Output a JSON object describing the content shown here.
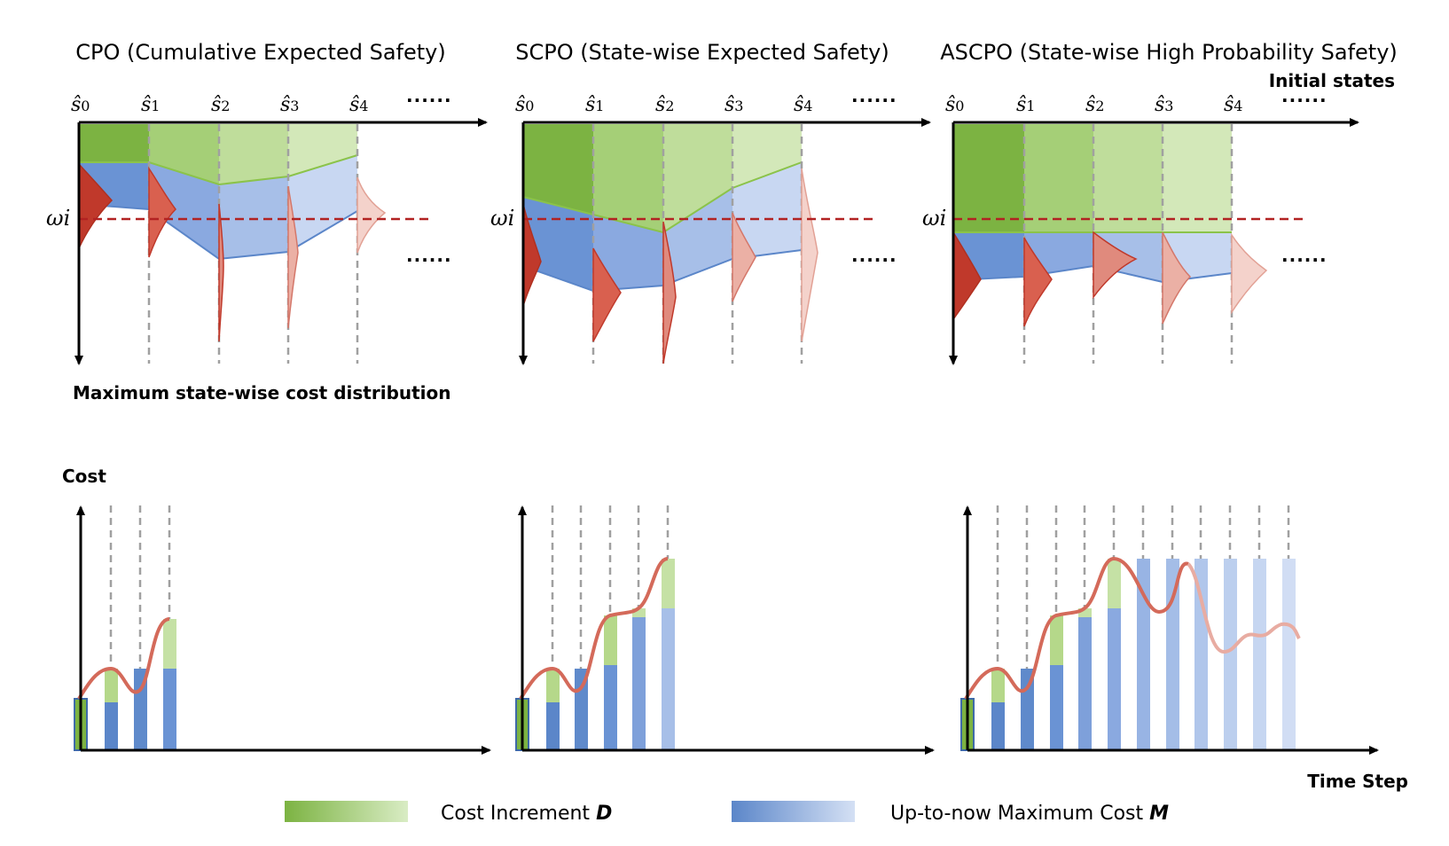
{
  "panels": [
    {
      "title": "CPO (Cumulative Expected Safety)"
    },
    {
      "title": "SCPO (State-wise Expected Safety)"
    },
    {
      "title": "ASCPO (State-wise High Probability Safety)"
    }
  ],
  "state_labels": [
    "ŝ0",
    "ŝ1",
    "ŝ2",
    "ŝ3",
    "ŝ4"
  ],
  "state_base": "ŝ",
  "state_subs": [
    "0",
    "1",
    "2",
    "3",
    "4"
  ],
  "ellipsis": "......",
  "omega_label": "ωi",
  "initial_states_label": "Initial states",
  "max_cost_dist_label": "Maximum state-wise cost distribution",
  "cost_label": "Cost",
  "time_step_label": "Time Step",
  "legend": {
    "increment_prefix": "Cost Increment ",
    "increment_symbol": "D",
    "maxcost_prefix": "Up-to-now Maximum Cost ",
    "maxcost_symbol": "M"
  },
  "colors": {
    "green_dark": "#7cb342",
    "green_light": "#c5e1a5",
    "blue_dark": "#5b86c9",
    "blue_light": "#c9d8f1",
    "red": "#c0392b",
    "curve": "#d46a5a",
    "threshold": "#b22222",
    "dash_gray": "#a0a0a0"
  }
}
